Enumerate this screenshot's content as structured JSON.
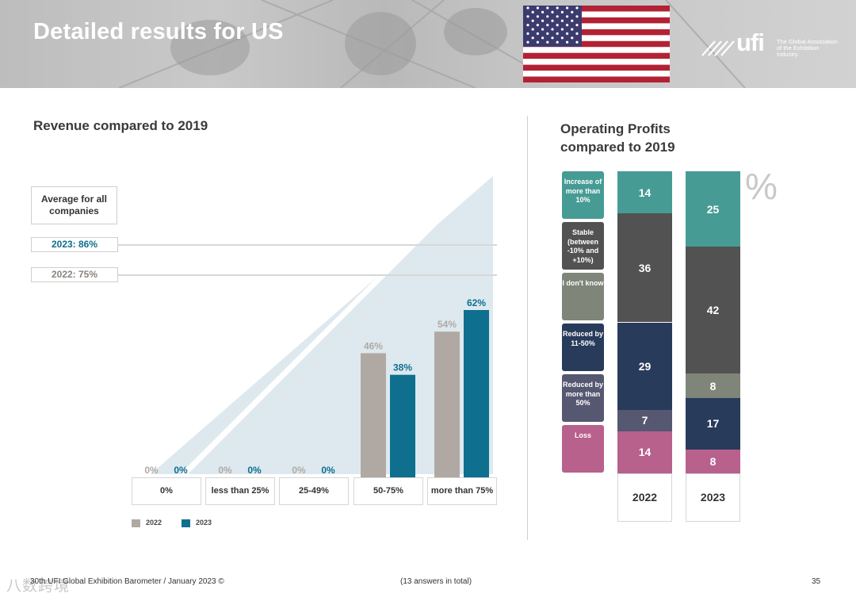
{
  "header": {
    "title": "Detailed results for US",
    "logo_text": "ufi",
    "logo_tagline": "The Global Association of the Exhibition Industry",
    "colors": {
      "flag_red": "#b22234",
      "flag_blue": "#3c3b6e"
    }
  },
  "revenue": {
    "section_title": "Revenue compared to 2019",
    "average_label": "Average for all companies",
    "average_2023": "2023: 86%",
    "average_2022": "2022: 75%",
    "legend": {
      "y2022": "2022",
      "y2023": "2023"
    }
  },
  "profits": {
    "section_title_line1": "Operating Profits",
    "section_title_line2": "compared to 2019",
    "percent_sign": "%",
    "labels": [
      "Increase of more than 10%",
      "Stable (between -10% and +10%)",
      "I don't know",
      "Reduced by 11-50%",
      "Reduced by more than 50%",
      "Loss"
    ]
  },
  "chart_data": [
    {
      "type": "bar",
      "title": "Revenue compared to 2019",
      "categories": [
        "0%",
        "less than 25%",
        "25-49%",
        "50-75%",
        "more than 75%"
      ],
      "series": [
        {
          "name": "2022",
          "color": "#b0a9a3",
          "values": [
            0,
            0,
            0,
            46,
            54
          ],
          "labels": [
            "0%",
            "0%",
            "0%",
            "46%",
            "54%"
          ]
        },
        {
          "name": "2023",
          "color": "#0e6f8e",
          "values": [
            0,
            0,
            0,
            38,
            62
          ],
          "labels": [
            "0%",
            "0%",
            "0%",
            "38%",
            "62%"
          ]
        }
      ],
      "ylim": [
        0,
        62
      ],
      "xlabel": "",
      "ylabel": ""
    },
    {
      "type": "bar",
      "stacked": true,
      "title": "Operating Profits compared to 2019",
      "categories": [
        "2022",
        "2023"
      ],
      "series": [
        {
          "name": "Loss",
          "color": "#b8618c",
          "values": [
            14,
            8
          ]
        },
        {
          "name": "Reduced by more than 50%",
          "color": "#565771",
          "values": [
            7,
            0
          ]
        },
        {
          "name": "Reduced by 11-50%",
          "color": "#283b5b",
          "values": [
            29,
            17
          ]
        },
        {
          "name": "I don't know",
          "color": "#80857a",
          "values": [
            0,
            8
          ]
        },
        {
          "name": "Stable (between -10% and +10%)",
          "color": "#525252",
          "values": [
            36,
            42
          ]
        },
        {
          "name": "Increase of more than 10%",
          "color": "#469c94",
          "values": [
            14,
            25
          ]
        }
      ],
      "ylabel": "%"
    }
  ],
  "footer": {
    "left": "30th UFI Global Exhibition Barometer / January 2023 ©",
    "center": "(13 answers in total)",
    "page": "35",
    "watermark": "八数跨境"
  }
}
